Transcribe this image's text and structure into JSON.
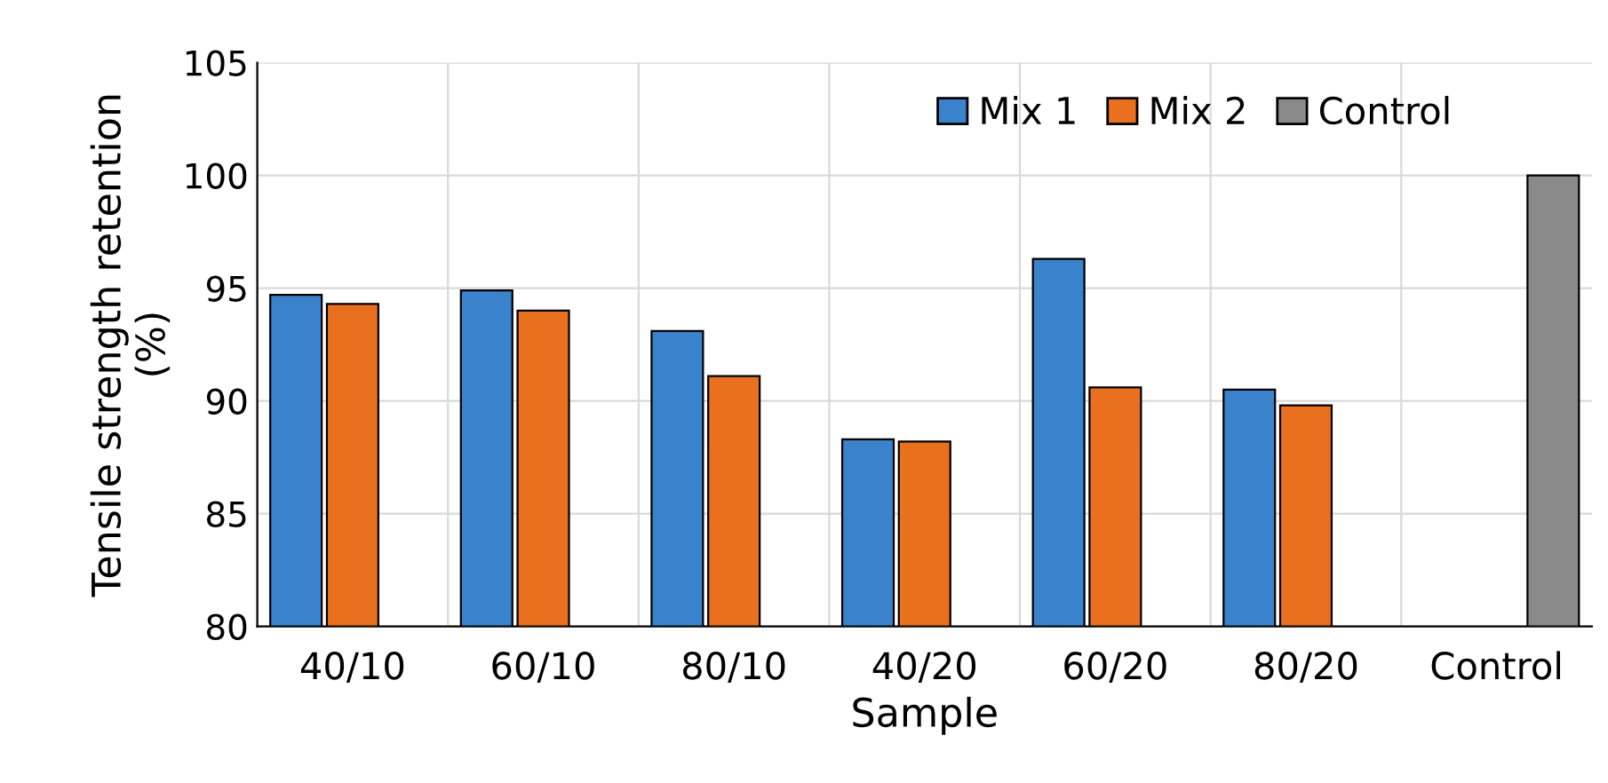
{
  "chart_data": {
    "type": "bar",
    "xlabel": "Sample",
    "ylabel": "Tensile strength retention\n(%)",
    "categories": [
      "40/10",
      "60/10",
      "80/10",
      "40/20",
      "60/20",
      "80/20",
      "Control"
    ],
    "series": [
      {
        "name": "Mix 1",
        "color": "#3a82cc",
        "values": [
          94.7,
          94.9,
          93.1,
          88.3,
          96.3,
          90.5,
          null
        ]
      },
      {
        "name": "Mix 2",
        "color": "#e8701e",
        "values": [
          94.3,
          94.0,
          91.1,
          88.2,
          90.6,
          89.8,
          null
        ]
      },
      {
        "name": "Control",
        "color": "#8a8a8a",
        "values": [
          null,
          null,
          null,
          null,
          null,
          null,
          100
        ]
      }
    ],
    "ylim": [
      80,
      105
    ],
    "yticks": [
      80,
      85,
      90,
      95,
      100,
      105
    ],
    "grid": true,
    "legend": "top right"
  }
}
